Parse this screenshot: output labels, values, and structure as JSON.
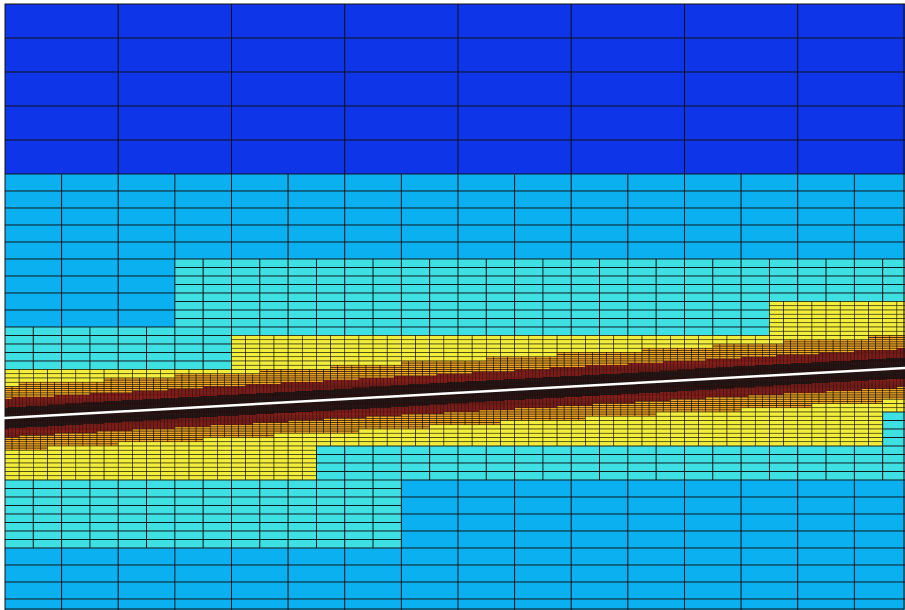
{
  "diagram": {
    "kind": "adaptive-mesh-refinement",
    "crack_line_color": "#ffffff",
    "grid_line_color": "#111111",
    "refinement_levels": [
      {
        "level": 0,
        "color": "#0a1a8c"
      },
      {
        "level": 1,
        "color": "#0f35e8"
      },
      {
        "level": 2,
        "color": "#0ab0f0"
      },
      {
        "level": 3,
        "color": "#3fe0e4"
      },
      {
        "level": 4,
        "color": "#f3ee3a"
      },
      {
        "level": 5,
        "color": "#f5a71e"
      },
      {
        "level": 6,
        "color": "#c0211a"
      },
      {
        "level": 7,
        "color": "#7a1510"
      }
    ]
  }
}
